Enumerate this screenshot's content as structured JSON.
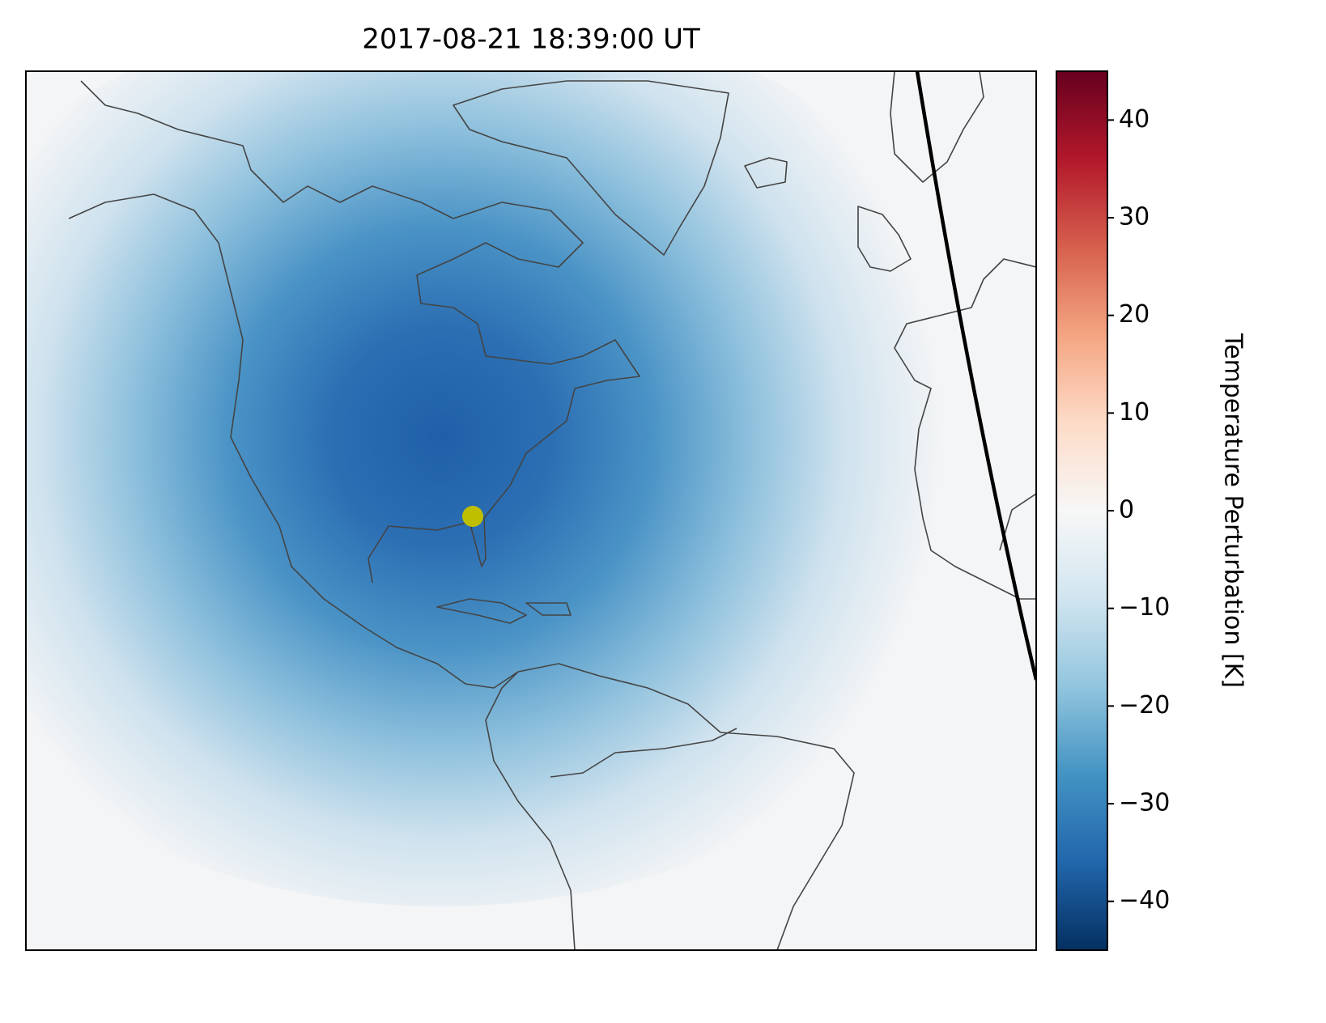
{
  "chart_data": {
    "type": "map",
    "title": "2017-08-21 18:39:00 UT",
    "colorbar": {
      "label": "Temperature Perturbation [K]",
      "clim": [
        -45,
        45
      ],
      "ticks": [
        {
          "value": -40,
          "label": "−40"
        },
        {
          "value": -30,
          "label": "−30"
        },
        {
          "value": -20,
          "label": "−20"
        },
        {
          "value": -10,
          "label": "−10"
        },
        0,
        10,
        20,
        30,
        40
      ],
      "colors": [
        "#053061",
        "#2166ac",
        "#4393c3",
        "#92c5de",
        "#d1e5f0",
        "#f7f7f7",
        "#fddbc7",
        "#f4a582",
        "#d6604d",
        "#b2182b",
        "#67001f"
      ]
    }
  }
}
